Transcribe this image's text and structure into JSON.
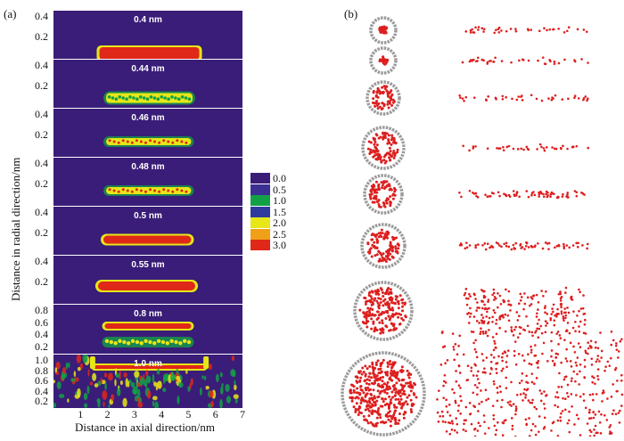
{
  "figure": {
    "panel_a_label": "(a)",
    "panel_b_label": "(b)",
    "y_axis_label": "Distance in radial direction/nm",
    "x_axis_label": "Distance in axial direction/nm",
    "x_ticks": [
      "1",
      "2",
      "3",
      "4",
      "5",
      "6",
      "7"
    ],
    "strips": [
      {
        "title": "0.4 nm",
        "y_ticks": [
          "0.4",
          "0.2"
        ]
      },
      {
        "title": "0.44 nm",
        "y_ticks": [
          "0.4",
          "0.2"
        ]
      },
      {
        "title": "0.46 nm",
        "y_ticks": [
          "0.4",
          "0.2"
        ]
      },
      {
        "title": "0.48 nm",
        "y_ticks": [
          "0.4",
          "0.2"
        ]
      },
      {
        "title": "0.5 nm",
        "y_ticks": [
          "0.4",
          "0.2"
        ]
      },
      {
        "title": "0.55 nm",
        "y_ticks": [
          "0.4",
          "0.2"
        ]
      },
      {
        "title": "0.8 nm",
        "y_ticks": [
          "0.8",
          "0.6",
          "0.4",
          "0.2"
        ]
      },
      {
        "title": "1.0 nm",
        "y_ticks": [
          "1.0",
          "0.8",
          "0.6",
          "0.4",
          "0.2"
        ]
      }
    ],
    "legend": [
      {
        "label": "0.0",
        "color": "#3a1d78"
      },
      {
        "label": "0.5",
        "color": "#3b2f93"
      },
      {
        "label": "1.0",
        "color": "#12a046"
      },
      {
        "label": "1.5",
        "color": "#2e3a9e"
      },
      {
        "label": "2.0",
        "color": "#e6e619"
      },
      {
        "label": "2.5",
        "color": "#f0a018"
      },
      {
        "label": "3.0",
        "color": "#e02818"
      }
    ],
    "colors": {
      "background": "#3a1d78",
      "density_high": "#e02818",
      "density_mid": "#e6e619",
      "density_low": "#12a046",
      "carbon": "#9a9a9a",
      "oxygen": "#dd1f1f"
    }
  }
}
